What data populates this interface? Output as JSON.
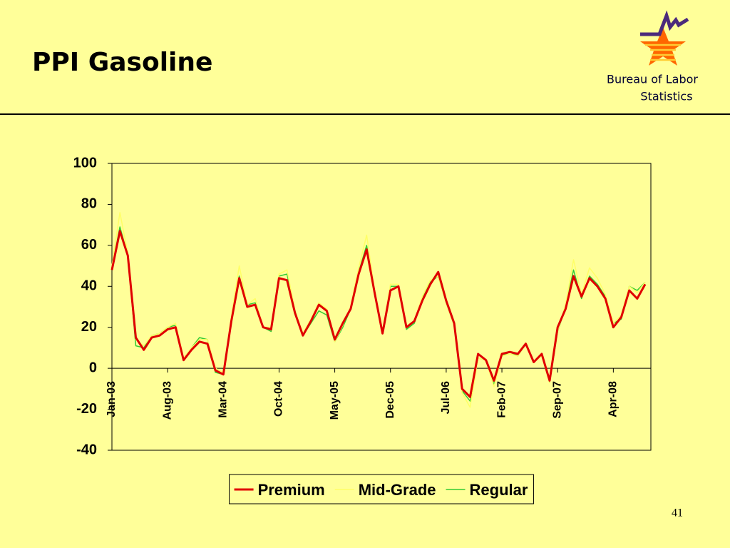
{
  "slide_title": "PPI Gasoline",
  "organization": [
    "Bureau of Labor",
    "Statistics"
  ],
  "page_number": "41",
  "chart_data": {
    "type": "line",
    "categories": [
      "Jan-03",
      null,
      null,
      null,
      null,
      null,
      null,
      "Aug-03",
      null,
      null,
      null,
      null,
      null,
      null,
      "Mar-04",
      null,
      null,
      null,
      null,
      null,
      null,
      "Oct-04",
      null,
      null,
      null,
      null,
      null,
      null,
      "May-05",
      null,
      null,
      null,
      null,
      null,
      null,
      "Dec-05",
      null,
      null,
      null,
      null,
      null,
      null,
      "Jul-06",
      null,
      null,
      null,
      null,
      null,
      null,
      "Feb-07",
      null,
      null,
      null,
      null,
      null,
      null,
      "Sep-07",
      null,
      null,
      null,
      null,
      null,
      null,
      "Apr-08",
      null,
      null,
      null,
      null
    ],
    "series": [
      {
        "name": "Premium",
        "color": "#e00000",
        "values": [
          48,
          67,
          55,
          15,
          9,
          15,
          16,
          19,
          20,
          4,
          9,
          13,
          12,
          -1,
          -3,
          23,
          44,
          30,
          31,
          20,
          19,
          44,
          43,
          27,
          16,
          23,
          31,
          28,
          14,
          22,
          29,
          46,
          58,
          37,
          17,
          38,
          40,
          20,
          23,
          33,
          41,
          47,
          33,
          22,
          -10,
          -14,
          7,
          4,
          -6,
          7,
          8,
          7,
          12,
          3,
          7,
          -6,
          20,
          29,
          45,
          35,
          44,
          40,
          34,
          20,
          25,
          38,
          34,
          41
        ]
      },
      {
        "name": "Mid-Grade",
        "color": "#ffff66",
        "values": [
          50,
          76,
          56,
          14,
          11,
          16,
          17,
          20,
          22,
          5,
          10,
          14,
          14,
          0,
          -2,
          25,
          50,
          31,
          34,
          20,
          20,
          46,
          48,
          28,
          17,
          24,
          32,
          29,
          13,
          21,
          30,
          49,
          65,
          38,
          18,
          41,
          41,
          20,
          23,
          35,
          43,
          45,
          32,
          21,
          -12,
          -19,
          5,
          4,
          -9,
          6,
          7,
          6,
          12,
          3,
          6,
          -7,
          18,
          31,
          53,
          36,
          49,
          44,
          36,
          22,
          26,
          40,
          37,
          42
        ]
      },
      {
        "name": "Regular",
        "color": "#33cc33",
        "values": [
          49,
          69,
          55,
          11,
          10,
          16,
          17,
          20,
          21,
          4,
          10,
          15,
          14,
          -2,
          -3,
          24,
          45,
          31,
          32,
          20,
          18,
          45,
          46,
          28,
          16,
          22,
          28,
          26,
          13,
          20,
          29,
          47,
          60,
          37,
          17,
          40,
          40,
          19,
          22,
          34,
          42,
          45,
          32,
          21,
          -11,
          -16,
          5,
          4,
          -8,
          6,
          8,
          6,
          12,
          3,
          7,
          -7,
          18,
          30,
          48,
          34,
          45,
          41,
          35,
          22,
          24,
          40,
          38,
          42
        ]
      }
    ],
    "ylim": [
      -40,
      100
    ],
    "yticks": [
      -40,
      -20,
      0,
      20,
      40,
      60,
      80,
      100
    ],
    "grid": false,
    "legend": "bottom"
  }
}
